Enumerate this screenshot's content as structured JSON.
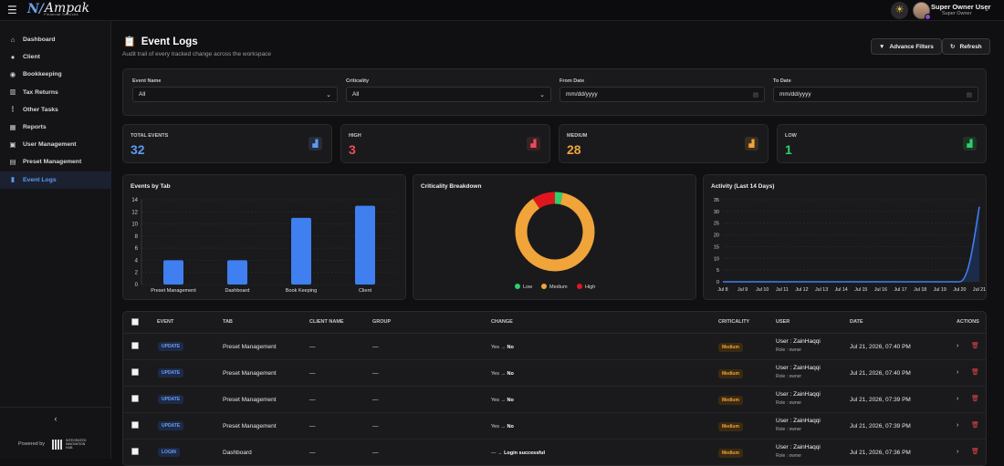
{
  "brand": {
    "mark": "N/",
    "name": "Ampak",
    "sub": "Financial Services"
  },
  "user": {
    "name": "Super Owner User",
    "role": "Super Owner"
  },
  "sidebar": {
    "items": [
      {
        "label": "Dashboard",
        "icon": "home-icon"
      },
      {
        "label": "Client",
        "icon": "user-icon"
      },
      {
        "label": "Bookkeeping",
        "icon": "check-circle-icon"
      },
      {
        "label": "Tax Returns",
        "icon": "bar-chart-icon"
      },
      {
        "label": "Other Tasks",
        "icon": "more-vertical-icon"
      },
      {
        "label": "Reports",
        "icon": "calendar-icon"
      },
      {
        "label": "User Management",
        "icon": "users-icon"
      },
      {
        "label": "Preset Management",
        "icon": "archive-icon"
      },
      {
        "label": "Event Logs",
        "icon": "clipboard-icon"
      }
    ],
    "powered_by": "Powered by",
    "partner_logo_text": "INTEGRATED INNOVATION HUB"
  },
  "page": {
    "title": "Event Logs",
    "subtitle": "Audit trail of every tracked change across the workspace",
    "advance_filters": "Advance Filters",
    "refresh": "Refresh"
  },
  "filters": {
    "event_name": {
      "label": "Event Name",
      "value": "All"
    },
    "criticality": {
      "label": "Criticality",
      "value": "All"
    },
    "from_date": {
      "label": "From Date",
      "value": "mm/dd/yyyy"
    },
    "to_date": {
      "label": "To Date",
      "value": "mm/dd/yyyy"
    }
  },
  "stats": [
    {
      "label": "TOTAL EVENTS",
      "value": "32",
      "color": "#5b9bf5"
    },
    {
      "label": "HIGH",
      "value": "3",
      "color": "#ef4b5a"
    },
    {
      "label": "MEDIUM",
      "value": "28",
      "color": "#f0a43a"
    },
    {
      "label": "LOW",
      "value": "1",
      "color": "#2fcf6b"
    }
  ],
  "chart_data": [
    {
      "type": "bar",
      "title": "Events by Tab",
      "categories": [
        "Preset Management",
        "Dashboard",
        "Book Keeping",
        "Client"
      ],
      "values": [
        4,
        4,
        11,
        13
      ],
      "ylim": [
        0,
        14
      ],
      "yticks": [
        0,
        2,
        4,
        6,
        8,
        10,
        12,
        14
      ],
      "grid": true,
      "color": "#3f7ff0"
    },
    {
      "type": "pie",
      "title": "Criticality Breakdown",
      "labels": [
        "Low",
        "Medium",
        "High"
      ],
      "values": [
        1,
        28,
        3
      ],
      "colors": [
        "#2fcf6b",
        "#f0a43a",
        "#e0161e"
      ],
      "legend": "bottom"
    },
    {
      "type": "area",
      "title": "Activity (Last 14 Days)",
      "categories": [
        "Jul 8",
        "Jul 9",
        "Jul 10",
        "Jul 11",
        "Jul 12",
        "Jul 13",
        "Jul 14",
        "Jul 15",
        "Jul 16",
        "Jul 17",
        "Jul 18",
        "Jul 19",
        "Jul 20",
        "Jul 21"
      ],
      "values": [
        0,
        0,
        0,
        0,
        0,
        0,
        0,
        0,
        0,
        0,
        0,
        0,
        0,
        32
      ],
      "ylim": [
        0,
        35
      ],
      "yticks": [
        0,
        5,
        10,
        15,
        20,
        25,
        30,
        35
      ],
      "grid": true,
      "color": "#3f7ff0"
    }
  ],
  "table": {
    "headers": {
      "event": "EVENT",
      "tab": "TAB",
      "client": "CLIENT NAME",
      "group": "GROUP",
      "change": "CHANGE",
      "criticality": "CRITICALITY",
      "user": "USER",
      "date": "DATE",
      "actions": "ACTIONS"
    },
    "rows": [
      {
        "event": "UPDATE",
        "tab": "Preset Management",
        "client": "—",
        "group": "—",
        "from": "Yes",
        "to": "No",
        "crit": "Medium",
        "user": "User : ZainHaqqi",
        "role": "Role : owner",
        "date": "Jul 21, 2026, 07:40 PM"
      },
      {
        "event": "UPDATE",
        "tab": "Preset Management",
        "client": "—",
        "group": "—",
        "from": "Yes",
        "to": "No",
        "crit": "Medium",
        "user": "User : ZainHaqqi",
        "role": "Role : owner",
        "date": "Jul 21, 2026, 07:40 PM"
      },
      {
        "event": "UPDATE",
        "tab": "Preset Management",
        "client": "—",
        "group": "—",
        "from": "Yes",
        "to": "No",
        "crit": "Medium",
        "user": "User : ZainHaqqi",
        "role": "Role : owner",
        "date": "Jul 21, 2026, 07:39 PM"
      },
      {
        "event": "UPDATE",
        "tab": "Preset Management",
        "client": "—",
        "group": "—",
        "from": "Yes",
        "to": "No",
        "crit": "Medium",
        "user": "User : ZainHaqqi",
        "role": "Role : owner",
        "date": "Jul 21, 2026, 07:39 PM"
      },
      {
        "event": "LOGIN",
        "tab": "Dashboard",
        "client": "—",
        "group": "—",
        "from": "—",
        "to": "Login successful",
        "crit": "Medium",
        "user": "User : ZainHaqqi",
        "role": "Role : owner",
        "date": "Jul 21, 2026, 07:36 PM"
      }
    ]
  }
}
